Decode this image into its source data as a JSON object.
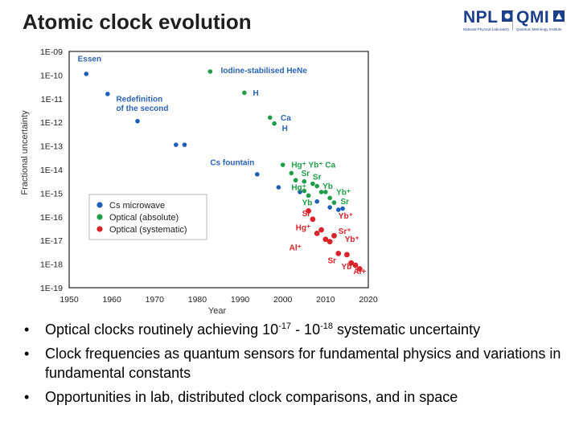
{
  "slide": {
    "title": "Atomic clock evolution",
    "logos": [
      {
        "name": "NPL",
        "sub": "National Physical Laboratory"
      },
      {
        "name": "QMI",
        "sub": "Quantum Metrology Institute"
      }
    ]
  },
  "colors": {
    "blue": "#1f5fb5",
    "green": "#1f9e4a",
    "red": "#d8242a",
    "label_blue": "#2c63b4"
  },
  "bullets": {
    "b1": {
      "pre": "Optical clocks routinely achieving 10",
      "sup1": "-17",
      "mid": " - 10",
      "sup2": "-18",
      "post": " systematic uncertainty"
    },
    "b2": "Clock frequencies as quantum sensors for fundamental physics and variations in fundamental constants",
    "b3": "Opportunities in lab, distributed clock comparisons, and in space"
  },
  "chart_data": {
    "type": "scatter",
    "xlabel": "Year",
    "ylabel": "Fractional uncertainty",
    "xlim": [
      1950,
      2020
    ],
    "ylim_exp": [
      -19,
      -9
    ],
    "log_y": true,
    "x_ticks": [
      1950,
      1960,
      1970,
      1980,
      1990,
      2000,
      2010,
      2020
    ],
    "y_ticks": [
      "1E-09",
      "1E-10",
      "1E-11",
      "1E-12",
      "1E-13",
      "1E-14",
      "1E-15",
      "1E-16",
      "1E-17",
      "1E-18",
      "1E-19"
    ],
    "legend": {
      "placement": "bottom-left",
      "entries": [
        "Cs microwave",
        "Optical (absolute)",
        "Optical (systematic)"
      ]
    },
    "series": [
      {
        "name": "Cs microwave",
        "color": "#1f5fb5",
        "points": [
          [
            1954,
            -9.95
          ],
          [
            1959,
            -10.8
          ],
          [
            1966,
            -11.95
          ],
          [
            1975,
            -12.95
          ],
          [
            1977,
            -12.95
          ],
          [
            1994,
            -14.2
          ],
          [
            1999,
            -14.75
          ],
          [
            2004,
            -14.95
          ],
          [
            2008,
            -15.35
          ],
          [
            2011,
            -15.6
          ],
          [
            2013,
            -15.7
          ],
          [
            2014,
            -15.65
          ]
        ]
      },
      {
        "name": "Optical (absolute)",
        "color": "#1f9e4a",
        "points": [
          [
            1983,
            -9.85
          ],
          [
            1991,
            -10.75
          ],
          [
            1997,
            -11.8
          ],
          [
            1998,
            -12.05
          ],
          [
            2000,
            -13.8
          ],
          [
            2002,
            -14.15
          ],
          [
            2003,
            -14.45
          ],
          [
            2005,
            -14.5
          ],
          [
            2005,
            -14.9
          ],
          [
            2006,
            -15.1
          ],
          [
            2007,
            -14.6
          ],
          [
            2008,
            -14.7
          ],
          [
            2009,
            -14.95
          ],
          [
            2010,
            -14.95
          ],
          [
            2011,
            -15.2
          ],
          [
            2012,
            -15.4
          ]
        ]
      },
      {
        "name": "Optical (systematic)",
        "color": "#d8242a",
        "points": [
          [
            2006,
            -15.75
          ],
          [
            2007,
            -16.1
          ],
          [
            2008,
            -16.7
          ],
          [
            2009,
            -16.55
          ],
          [
            2010,
            -16.95
          ],
          [
            2011,
            -17.05
          ],
          [
            2012,
            -16.8
          ],
          [
            2013,
            -17.55
          ],
          [
            2015,
            -17.6
          ],
          [
            2016,
            -17.95
          ],
          [
            2017,
            -18.05
          ],
          [
            2018,
            -18.2
          ]
        ]
      }
    ],
    "annotations": [
      {
        "text": "Essen",
        "x": 1952,
        "y": -9.3,
        "color": "blue"
      },
      {
        "text": "Iodine-stabilised HeNe",
        "x": 1985.5,
        "y": -9.8,
        "color": "blue"
      },
      {
        "text": "H",
        "x": 1993,
        "y": -10.75,
        "color": "blue"
      },
      {
        "text": "Redefinition",
        "x": 1961,
        "y": -11.0,
        "color": "blue"
      },
      {
        "text": "of the second",
        "x": 1961,
        "y": -11.4,
        "color": "blue"
      },
      {
        "text": "Ca",
        "x": 1999.5,
        "y": -11.8,
        "color": "blue"
      },
      {
        "text": "H",
        "x": 1999.8,
        "y": -12.25,
        "color": "blue"
      },
      {
        "text": "Cs fountain",
        "x": 1983,
        "y": -13.7,
        "color": "blue"
      },
      {
        "text": "Hg⁺ Yb⁺ Ca",
        "x": 2002,
        "y": -13.8,
        "color": "green"
      },
      {
        "text": "Sr",
        "x": 2004.3,
        "y": -14.15,
        "color": "green"
      },
      {
        "text": "Sr",
        "x": 2007,
        "y": -14.3,
        "color": "green"
      },
      {
        "text": "Yb",
        "x": 2009.3,
        "y": -14.7,
        "color": "green"
      },
      {
        "text": "Hg⁺",
        "x": 2002,
        "y": -14.75,
        "color": "green"
      },
      {
        "text": "Yb⁺",
        "x": 2012.5,
        "y": -14.95,
        "color": "green"
      },
      {
        "text": "Yb",
        "x": 2004.5,
        "y": -15.4,
        "color": "green"
      },
      {
        "text": "Sr",
        "x": 2013.5,
        "y": -15.35,
        "color": "green"
      },
      {
        "text": "Sr",
        "x": 2004.5,
        "y": -15.85,
        "color": "red"
      },
      {
        "text": "Yb⁺",
        "x": 2013,
        "y": -15.95,
        "color": "red"
      },
      {
        "text": "Hg⁺",
        "x": 2003,
        "y": -16.45,
        "color": "red"
      },
      {
        "text": "Sr⁺",
        "x": 2013,
        "y": -16.6,
        "color": "red"
      },
      {
        "text": "Yb⁺",
        "x": 2014.5,
        "y": -16.95,
        "color": "red"
      },
      {
        "text": "Al⁺",
        "x": 2001.5,
        "y": -17.3,
        "color": "red"
      },
      {
        "text": "Sr",
        "x": 2010.5,
        "y": -17.85,
        "color": "red"
      },
      {
        "text": "Yb",
        "x": 2013.7,
        "y": -18.1,
        "color": "red"
      },
      {
        "text": "Al+",
        "x": 2016.5,
        "y": -18.3,
        "color": "red"
      }
    ]
  }
}
